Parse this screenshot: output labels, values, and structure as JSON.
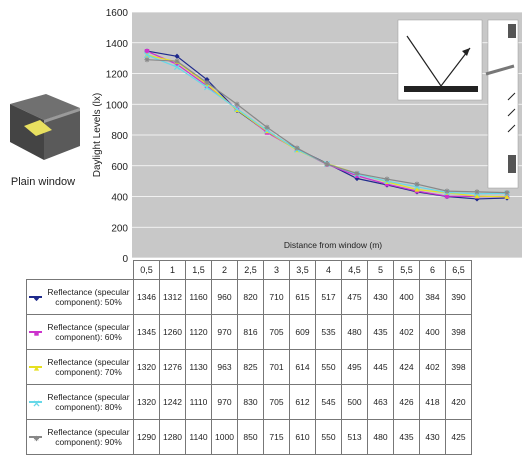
{
  "thumbnail": {
    "label": "Plain window"
  },
  "chart_data": {
    "type": "line",
    "title": "",
    "ylabel": "Daylight Levels (lx)",
    "xlabel": "Distance from window (m)",
    "ylim": [
      0,
      1600
    ],
    "yticks": [
      "0",
      "200",
      "400",
      "600",
      "800",
      "1000",
      "1200",
      "1400",
      "1600"
    ],
    "categories": [
      "0,5",
      "1",
      "1,5",
      "2",
      "2,5",
      "3",
      "3,5",
      "4",
      "4,5",
      "5",
      "5,5",
      "6",
      "6,5"
    ],
    "grid": true,
    "legend": "table-below",
    "series": [
      {
        "name": "Reflectance (specular component): 50%",
        "color": "#1f2a8c",
        "marker": "diamond",
        "values": [
          1346,
          1312,
          1160,
          960,
          820,
          710,
          615,
          517,
          475,
          430,
          400,
          384,
          390
        ]
      },
      {
        "name": "Reflectance (specular component): 60%",
        "color": "#cc33cc",
        "marker": "square",
        "values": [
          1345,
          1260,
          1120,
          970,
          816,
          705,
          609,
          535,
          480,
          435,
          402,
          400,
          398
        ]
      },
      {
        "name": "Reflectance (specular component): 70%",
        "color": "#e6e020",
        "marker": "triangle",
        "values": [
          1320,
          1276,
          1130,
          963,
          825,
          701,
          614,
          550,
          495,
          445,
          424,
          402,
          398
        ]
      },
      {
        "name": "Reflectance (specular component): 80%",
        "color": "#66d8e8",
        "marker": "x",
        "values": [
          1320,
          1242,
          1110,
          970,
          830,
          705,
          612,
          545,
          500,
          463,
          426,
          418,
          420
        ]
      },
      {
        "name": "Reflectance (specular component): 90%",
        "color": "#888888",
        "marker": "star",
        "values": [
          1290,
          1280,
          1140,
          1000,
          850,
          715,
          610,
          550,
          513,
          480,
          435,
          430,
          425
        ]
      }
    ]
  }
}
